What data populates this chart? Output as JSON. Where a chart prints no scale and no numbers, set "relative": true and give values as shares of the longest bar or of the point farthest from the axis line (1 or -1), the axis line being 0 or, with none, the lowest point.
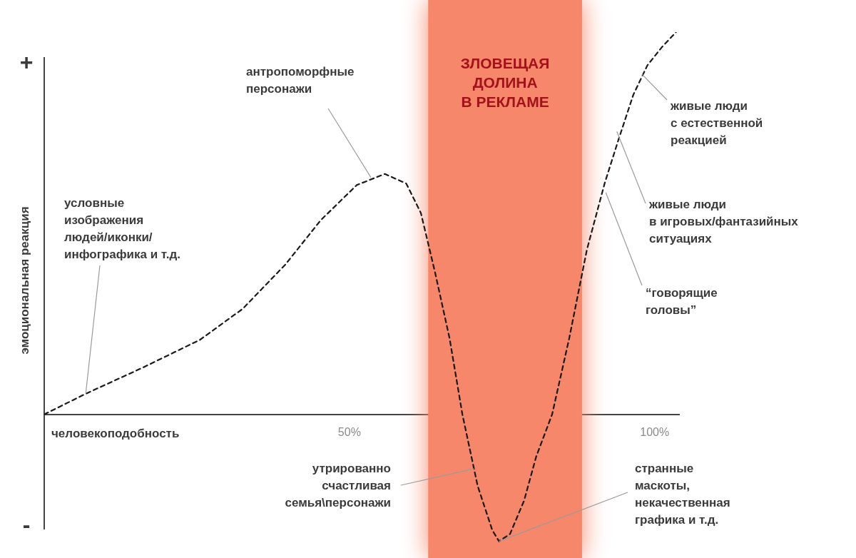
{
  "chart_data": {
    "type": "line",
    "relative": true,
    "xlabel": "человекоподобность",
    "ylabel": "эмоциональная реакция",
    "xlim": [
      0,
      104
    ],
    "xticks": [
      {
        "value": 50,
        "label": "50%"
      },
      {
        "value": 100,
        "label": "100%"
      }
    ],
    "grid": false,
    "legend": false,
    "marker": "none",
    "line_style": "dashed",
    "series": [
      {
        "color": "#1a1a1a",
        "x": [
          0,
          6.8,
          16.1,
          25.5,
          32.5,
          39.5,
          45.3,
          51.2,
          55.8,
          59.3,
          61.7,
          64.0,
          66.4,
          68.5,
          71.0,
          73.4,
          74.5,
          76.3,
          78.6,
          80.6,
          83.2,
          86.0,
          88.9,
          91.8,
          94.1,
          96.5,
          98.8,
          101.2,
          103.5
        ],
        "values": [
          0,
          0.054,
          0.122,
          0.195,
          0.276,
          0.392,
          0.508,
          0.6,
          0.629,
          0.604,
          0.527,
          0.373,
          0.199,
          0,
          -0.187,
          -0.303,
          -0.332,
          -0.313,
          -0.226,
          -0.11,
          0,
          0.199,
          0.431,
          0.604,
          0.72,
          0.836,
          0.913,
          0.961,
          1
        ]
      }
    ],
    "bands": [
      {
        "axis": "x",
        "from": 62.9,
        "to": 88.1,
        "label": "ЗЛОВЕЩАЯ\nДОЛИНА\nВ РЕКЛАМЕ",
        "color": "#f7876a"
      }
    ],
    "annotations": [
      "+",
      "-",
      {
        "text": "условные\nизображения\nлюдей/иконки/\nинфографика и т.д.",
        "x": 6.8,
        "y": 0.054
      },
      {
        "text": "антропоморфные\nперсонажи",
        "x": 53.5,
        "y": 0.62
      },
      {
        "text": "утрированно\nсчастливая\nсемья\\персонажи",
        "x": 70.4,
        "y": -0.142
      },
      {
        "text": "странные\nмаскоты,\nнекачественная\nграфика и т.д.",
        "x": 74.5,
        "y": -0.332
      },
      {
        "text": "живые люди\nс естественной\nреакцией",
        "x": 97.9,
        "y": 0.89
      },
      {
        "text": "живые люди\nв игровых/фантазийных\nситуациях",
        "x": 93.8,
        "y": 0.74
      },
      {
        "text": "“говорящие\nголовы”",
        "x": 92,
        "y": 0.58
      }
    ]
  }
}
